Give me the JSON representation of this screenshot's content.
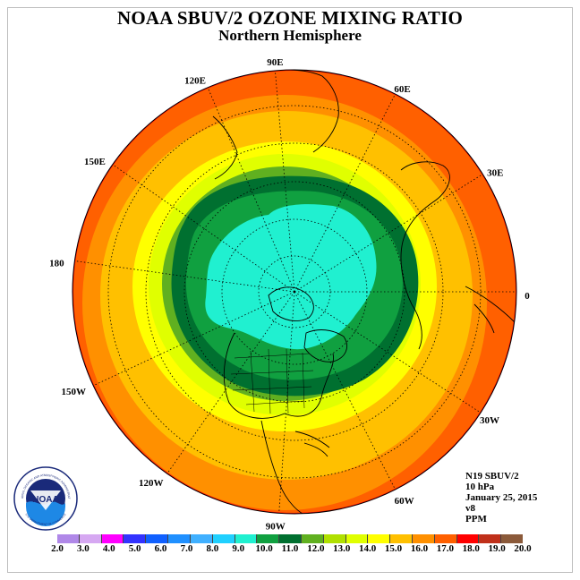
{
  "title": "NOAA SBUV/2 OZONE MIXING RATIO",
  "subtitle": "Northern Hemisphere",
  "longitude_labels": [
    "90E",
    "60E",
    "30E",
    "0",
    "30W",
    "60W",
    "90W",
    "120W",
    "150W",
    "180",
    "150E",
    "120E"
  ],
  "info": {
    "instrument": "N19 SBUV/2",
    "pressure": "10 hPa",
    "date": "January 25, 2015",
    "version": "v8",
    "units": "PPM"
  },
  "colorbar": {
    "ticks": [
      "2.0",
      "3.0",
      "4.0",
      "5.0",
      "6.0",
      "7.0",
      "8.0",
      "9.0",
      "10.0",
      "11.0",
      "12.0",
      "13.0",
      "14.0",
      "15.0",
      "16.0",
      "17.0",
      "18.0",
      "19.0",
      "20.0"
    ],
    "colors": [
      "#b088e8",
      "#d6a8f2",
      "#ff00ff",
      "#3333ff",
      "#1060ff",
      "#2090ff",
      "#40b0ff",
      "#20d0ff",
      "#20f0d0",
      "#10a040",
      "#007030",
      "#60b020",
      "#b0e000",
      "#e0ff00",
      "#ffff00",
      "#ffc000",
      "#ff9000",
      "#ff6000",
      "#ff0000",
      "#c0301a",
      "#8b5a3a"
    ]
  },
  "logo": {
    "text": "NOAA",
    "ring_top": "NATIONAL OCEANIC AND ATMOSPHERIC ADMINISTRATION",
    "ring_bottom": "U.S. DEPARTMENT OF COMMERCE"
  }
}
